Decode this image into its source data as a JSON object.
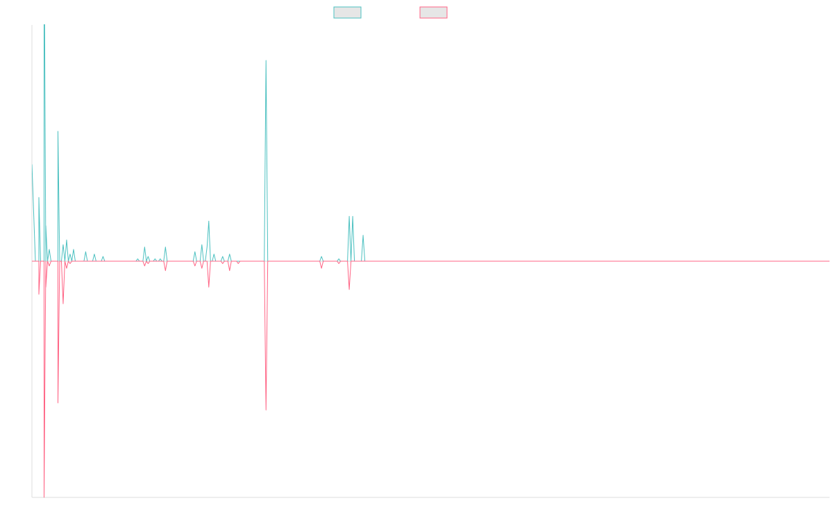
{
  "colors": {
    "series_a": "#4bc0c0",
    "series_b": "#ff6384",
    "legend_fill": "#e6e6e6",
    "axis": "#dddddd",
    "zero_line": "#999999"
  },
  "chart_data": {
    "type": "line",
    "title": "",
    "xlabel": "",
    "ylabel": "",
    "ylim": [
      -100,
      100
    ],
    "xlim": [
      0,
      460
    ],
    "grid": false,
    "axis_ticks_visible": false,
    "legend": {
      "placement": "top-center",
      "labels_visible": false
    },
    "series": [
      {
        "color": "#4bc0c0",
        "points": [
          [
            0,
            41
          ],
          [
            2,
            0
          ],
          [
            4,
            0
          ],
          [
            4,
            27
          ],
          [
            5,
            0
          ],
          [
            7,
            0
          ],
          [
            7,
            150
          ],
          [
            8,
            0
          ],
          [
            8,
            15
          ],
          [
            9,
            0
          ],
          [
            10,
            5
          ],
          [
            11,
            0
          ],
          [
            15,
            0
          ],
          [
            15,
            55
          ],
          [
            16,
            0
          ],
          [
            17,
            0
          ],
          [
            18,
            7
          ],
          [
            19,
            0
          ],
          [
            20,
            9
          ],
          [
            21,
            0
          ],
          [
            22,
            3
          ],
          [
            23,
            0
          ],
          [
            24,
            5
          ],
          [
            25,
            0
          ],
          [
            30,
            0
          ],
          [
            31,
            4
          ],
          [
            32,
            0
          ],
          [
            35,
            0
          ],
          [
            36,
            3
          ],
          [
            37,
            0
          ],
          [
            40,
            0
          ],
          [
            41,
            2
          ],
          [
            42,
            0
          ],
          [
            60,
            0
          ],
          [
            61,
            1
          ],
          [
            62,
            0
          ],
          [
            64,
            0
          ],
          [
            65,
            6
          ],
          [
            66,
            0
          ],
          [
            67,
            2
          ],
          [
            68,
            0
          ],
          [
            70,
            0
          ],
          [
            71,
            1
          ],
          [
            72,
            0
          ],
          [
            73,
            0
          ],
          [
            74,
            1
          ],
          [
            75,
            0
          ],
          [
            76,
            0
          ],
          [
            77,
            6
          ],
          [
            78,
            0
          ],
          [
            93,
            0
          ],
          [
            94,
            4
          ],
          [
            95,
            0
          ],
          [
            97,
            0
          ],
          [
            98,
            7
          ],
          [
            99,
            0
          ],
          [
            100,
            0
          ],
          [
            101,
            6
          ],
          [
            102,
            17
          ],
          [
            103,
            0
          ],
          [
            104,
            0
          ],
          [
            105,
            3
          ],
          [
            106,
            0
          ],
          [
            109,
            0
          ],
          [
            110,
            2
          ],
          [
            111,
            0
          ],
          [
            113,
            0
          ],
          [
            114,
            3
          ],
          [
            115,
            0
          ],
          [
            134,
            0
          ],
          [
            135,
            85
          ],
          [
            136,
            0
          ],
          [
            166,
            0
          ],
          [
            167,
            2
          ],
          [
            168,
            0
          ],
          [
            176,
            0
          ],
          [
            177,
            1
          ],
          [
            178,
            0
          ],
          [
            182,
            0
          ],
          [
            183,
            19
          ],
          [
            184,
            0
          ],
          [
            185,
            19
          ],
          [
            186,
            0
          ],
          [
            190,
            0
          ],
          [
            191,
            11
          ],
          [
            192,
            0
          ],
          [
            460,
            0
          ]
        ]
      },
      {
        "color": "#ff6384",
        "points": [
          [
            0,
            0
          ],
          [
            2,
            0
          ],
          [
            4,
            0
          ],
          [
            4,
            -14
          ],
          [
            5,
            0
          ],
          [
            7,
            0
          ],
          [
            7,
            -100
          ],
          [
            8,
            0
          ],
          [
            8,
            -11
          ],
          [
            9,
            0
          ],
          [
            10,
            -2
          ],
          [
            11,
            0
          ],
          [
            15,
            0
          ],
          [
            15,
            -60
          ],
          [
            16,
            0
          ],
          [
            17,
            0
          ],
          [
            18,
            -18
          ],
          [
            19,
            0
          ],
          [
            20,
            -3
          ],
          [
            21,
            0
          ],
          [
            22,
            -1
          ],
          [
            23,
            0
          ],
          [
            64,
            0
          ],
          [
            65,
            -2
          ],
          [
            66,
            0
          ],
          [
            67,
            -1
          ],
          [
            68,
            0
          ],
          [
            76,
            0
          ],
          [
            77,
            -4
          ],
          [
            78,
            0
          ],
          [
            93,
            0
          ],
          [
            94,
            -2
          ],
          [
            95,
            0
          ],
          [
            97,
            0
          ],
          [
            98,
            -3
          ],
          [
            99,
            0
          ],
          [
            101,
            0
          ],
          [
            102,
            -11
          ],
          [
            103,
            0
          ],
          [
            109,
            0
          ],
          [
            110,
            -1
          ],
          [
            111,
            0
          ],
          [
            113,
            0
          ],
          [
            114,
            -4
          ],
          [
            115,
            0
          ],
          [
            118,
            0
          ],
          [
            119,
            -1
          ],
          [
            120,
            0
          ],
          [
            134,
            0
          ],
          [
            135,
            -63
          ],
          [
            136,
            0
          ],
          [
            166,
            0
          ],
          [
            167,
            -3
          ],
          [
            168,
            0
          ],
          [
            176,
            0
          ],
          [
            177,
            -1
          ],
          [
            178,
            0
          ],
          [
            182,
            0
          ],
          [
            183,
            -12
          ],
          [
            184,
            0
          ],
          [
            460,
            0
          ]
        ]
      }
    ]
  }
}
